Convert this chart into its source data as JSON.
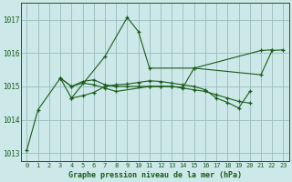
{
  "background_color": "#cce8e8",
  "plot_bg_color": "#cce8e8",
  "grid_color": "#99bbbb",
  "line_color": "#1a5c1a",
  "marker_color": "#1a5c1a",
  "xlabel": "Graphe pression niveau de la mer (hPa)",
  "ylim": [
    1012.75,
    1017.5
  ],
  "yticks": [
    1013,
    1014,
    1015,
    1016,
    1017
  ],
  "xlim": [
    -0.5,
    23.5
  ],
  "xticks": [
    0,
    1,
    2,
    3,
    4,
    5,
    6,
    7,
    8,
    9,
    10,
    11,
    12,
    13,
    14,
    15,
    16,
    17,
    18,
    19,
    20,
    21,
    22,
    23
  ],
  "series": [
    {
      "x": [
        0,
        1,
        3,
        4,
        7,
        9,
        10,
        11,
        15,
        21,
        22
      ],
      "y": [
        1013.1,
        1014.3,
        1015.25,
        1014.65,
        1015.9,
        1017.07,
        1016.65,
        1015.55,
        1015.55,
        1016.08,
        1016.1
      ]
    },
    {
      "x": [
        3,
        4,
        5,
        6,
        7,
        8,
        11,
        12,
        13,
        14,
        15,
        16,
        17,
        18,
        19,
        20
      ],
      "y": [
        1015.25,
        1015.0,
        1015.1,
        1015.05,
        1014.95,
        1014.85,
        1015.0,
        1015.0,
        1015.0,
        1014.95,
        1014.9,
        1014.85,
        1014.75,
        1014.65,
        1014.55,
        1014.5
      ]
    },
    {
      "x": [
        3,
        4,
        5,
        6,
        7,
        8,
        9,
        10,
        11,
        12,
        13,
        14,
        15,
        21,
        22,
        23
      ],
      "y": [
        1015.25,
        1015.0,
        1015.15,
        1015.2,
        1015.05,
        1015.0,
        1015.0,
        1015.0,
        1015.0,
        1015.0,
        1015.0,
        1014.97,
        1015.55,
        1015.35,
        1016.08,
        1016.1
      ]
    },
    {
      "x": [
        4,
        5,
        6,
        7,
        8,
        9,
        10,
        11,
        12,
        13,
        14,
        15,
        16,
        17,
        18,
        19,
        20
      ],
      "y": [
        1014.65,
        1014.72,
        1014.82,
        1015.0,
        1015.05,
        1015.07,
        1015.12,
        1015.17,
        1015.15,
        1015.1,
        1015.05,
        1015.0,
        1014.9,
        1014.65,
        1014.52,
        1014.35,
        1014.85
      ]
    }
  ]
}
